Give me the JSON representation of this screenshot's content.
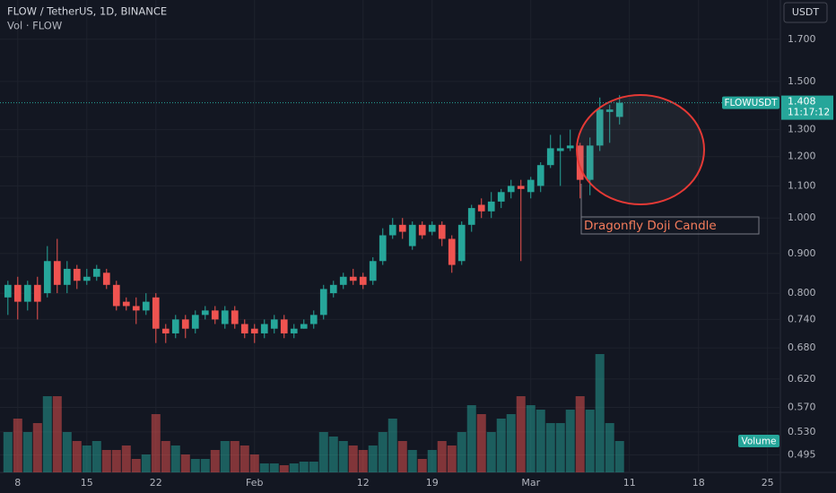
{
  "chart_data": {
    "type": "candlestick",
    "title": "FLOW / TetherUS, 1D, BINANCE",
    "subtitle": "Vol · FLOW",
    "axis_unit": "USDT",
    "volume_label": "Volume",
    "annotation": "Dragonfly Doji Candle",
    "up_color": "#26a69a",
    "down_color": "#ef5350",
    "log_scale": true,
    "grid": true,
    "x": [
      7,
      8,
      9,
      10,
      11,
      12,
      13,
      14,
      15,
      16,
      17,
      18,
      19,
      20,
      21,
      22,
      23,
      24,
      25,
      26,
      27,
      28,
      29,
      30,
      31,
      32,
      33,
      34,
      35,
      36,
      37,
      38,
      39,
      40,
      41,
      42,
      43,
      44,
      45,
      46,
      47,
      48,
      49,
      50,
      51,
      52,
      53,
      54,
      55,
      56,
      57,
      58,
      59,
      60,
      61,
      62,
      63,
      64,
      65,
      66,
      67,
      68,
      69
    ],
    "open": [
      0.79,
      0.82,
      0.78,
      0.82,
      0.8,
      0.88,
      0.82,
      0.86,
      0.83,
      0.84,
      0.85,
      0.82,
      0.78,
      0.77,
      0.76,
      0.79,
      0.72,
      0.71,
      0.74,
      0.72,
      0.75,
      0.76,
      0.73,
      0.76,
      0.73,
      0.72,
      0.71,
      0.72,
      0.74,
      0.71,
      0.72,
      0.73,
      0.75,
      0.8,
      0.82,
      0.84,
      0.84,
      0.83,
      0.88,
      0.95,
      0.98,
      0.92,
      0.98,
      0.96,
      0.98,
      0.94,
      0.88,
      0.98,
      1.04,
      1.02,
      1.05,
      1.08,
      1.1,
      1.08,
      1.1,
      1.17,
      1.22,
      1.23,
      1.24,
      1.12,
      1.24,
      1.37,
      1.35
    ],
    "high": [
      0.83,
      0.84,
      0.83,
      0.84,
      0.92,
      0.94,
      0.88,
      0.87,
      0.86,
      0.87,
      0.86,
      0.83,
      0.79,
      0.79,
      0.8,
      0.8,
      0.73,
      0.75,
      0.75,
      0.76,
      0.77,
      0.77,
      0.77,
      0.77,
      0.74,
      0.73,
      0.74,
      0.75,
      0.75,
      0.73,
      0.74,
      0.76,
      0.82,
      0.83,
      0.85,
      0.86,
      0.85,
      0.89,
      0.97,
      1.0,
      1.0,
      0.99,
      0.99,
      0.99,
      0.99,
      0.95,
      0.99,
      1.04,
      1.06,
      1.08,
      1.09,
      1.12,
      1.12,
      1.13,
      1.18,
      1.28,
      1.28,
      1.3,
      1.25,
      1.27,
      1.43,
      1.4,
      1.44
    ],
    "low": [
      0.75,
      0.74,
      0.76,
      0.74,
      0.79,
      0.8,
      0.8,
      0.81,
      0.82,
      0.83,
      0.81,
      0.76,
      0.76,
      0.73,
      0.75,
      0.69,
      0.69,
      0.7,
      0.7,
      0.71,
      0.74,
      0.73,
      0.72,
      0.72,
      0.7,
      0.69,
      0.7,
      0.71,
      0.7,
      0.7,
      0.72,
      0.72,
      0.74,
      0.79,
      0.81,
      0.82,
      0.81,
      0.82,
      0.87,
      0.94,
      0.94,
      0.91,
      0.94,
      0.95,
      0.92,
      0.85,
      0.87,
      0.96,
      1.0,
      1.0,
      1.03,
      1.06,
      0.88,
      1.06,
      1.08,
      1.16,
      1.1,
      1.22,
      1.06,
      1.07,
      1.22,
      1.25,
      1.32
    ],
    "close": [
      0.82,
      0.78,
      0.82,
      0.78,
      0.88,
      0.82,
      0.86,
      0.83,
      0.84,
      0.86,
      0.82,
      0.77,
      0.77,
      0.76,
      0.78,
      0.72,
      0.71,
      0.74,
      0.72,
      0.75,
      0.76,
      0.74,
      0.76,
      0.73,
      0.71,
      0.71,
      0.73,
      0.74,
      0.71,
      0.72,
      0.73,
      0.75,
      0.81,
      0.82,
      0.84,
      0.83,
      0.82,
      0.88,
      0.95,
      0.98,
      0.96,
      0.98,
      0.95,
      0.98,
      0.94,
      0.87,
      0.98,
      1.03,
      1.02,
      1.05,
      1.08,
      1.1,
      1.09,
      1.12,
      1.17,
      1.23,
      1.23,
      1.24,
      1.12,
      1.24,
      1.38,
      1.38,
      1.408
    ],
    "volume": [
      45,
      60,
      45,
      55,
      85,
      85,
      45,
      35,
      30,
      35,
      25,
      25,
      30,
      15,
      20,
      65,
      35,
      30,
      20,
      15,
      15,
      25,
      35,
      35,
      30,
      20,
      10,
      10,
      8,
      10,
      12,
      12,
      45,
      40,
      35,
      30,
      25,
      30,
      45,
      60,
      35,
      25,
      15,
      25,
      35,
      30,
      45,
      75,
      65,
      45,
      60,
      65,
      85,
      75,
      70,
      55,
      55,
      70,
      85,
      70,
      132,
      55,
      35
    ],
    "xlim": [
      6.2,
      85.3
    ],
    "xticks": [
      {
        "value": 8,
        "label": "8"
      },
      {
        "value": 15,
        "label": "15"
      },
      {
        "value": 22,
        "label": "22"
      },
      {
        "value": 32,
        "label": "Feb"
      },
      {
        "value": 43,
        "label": "12"
      },
      {
        "value": 50,
        "label": "19"
      },
      {
        "value": 60,
        "label": "Mar"
      },
      {
        "value": 70,
        "label": "11"
      },
      {
        "value": 77,
        "label": "18"
      },
      {
        "value": 84,
        "label": "25"
      }
    ],
    "ylim": [
      0.47,
      1.91
    ],
    "yticks": [
      0.495,
      {
        "value": 0.53,
        "label": "0.530"
      },
      {
        "value": 0.57,
        "label": "0.570"
      },
      {
        "value": 0.62,
        "label": "0.620"
      },
      {
        "value": 0.68,
        "label": "0.680"
      },
      {
        "value": 0.74,
        "label": "0.740"
      },
      {
        "value": 0.8,
        "label": "0.800"
      },
      {
        "value": 0.9,
        "label": "0.900"
      },
      {
        "value": 1.0,
        "label": "1.000"
      },
      {
        "value": 1.1,
        "label": "1.100"
      },
      {
        "value": 1.2,
        "label": "1.200"
      },
      {
        "value": 1.3,
        "label": "1.300"
      },
      {
        "value": 1.5,
        "label": "1.500"
      },
      {
        "value": 1.7,
        "label": "1.700"
      }
    ],
    "last_price": {
      "symbol": "FLOWUSDT",
      "value": 1.408,
      "countdown": "11:17:12"
    }
  }
}
